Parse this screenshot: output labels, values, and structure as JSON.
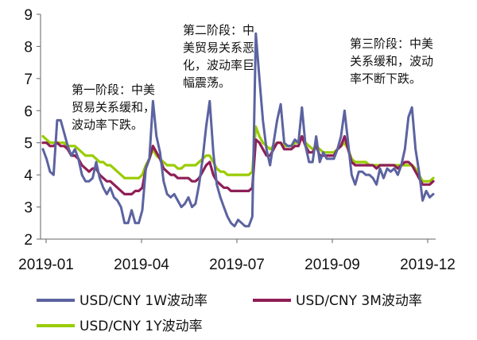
{
  "chart_data": {
    "type": "line",
    "title": "",
    "xlabel": "",
    "ylabel": "",
    "ylim": [
      2,
      9
    ],
    "yticks": [
      "2",
      "3",
      "4",
      "5",
      "6",
      "7",
      "8",
      "9"
    ],
    "xticks": [
      "2019-01",
      "2019-04",
      "2019-07",
      "2019-09",
      "2019-12"
    ],
    "grid": false,
    "legend_position": "bottom",
    "series": [
      {
        "name": "USD/CNY 1W波动率",
        "color": "#5b63a0",
        "values": [
          4.8,
          4.5,
          4.1,
          4.0,
          5.7,
          5.7,
          5.3,
          4.9,
          4.6,
          4.8,
          4.5,
          4.0,
          3.8,
          3.8,
          3.9,
          4.4,
          3.9,
          3.6,
          3.4,
          3.6,
          3.3,
          3.2,
          3.0,
          2.5,
          2.5,
          2.9,
          2.5,
          2.5,
          2.9,
          4.2,
          4.5,
          6.3,
          5.2,
          4.7,
          3.8,
          3.4,
          3.3,
          3.4,
          3.2,
          3.0,
          3.1,
          3.3,
          3.0,
          3.1,
          3.7,
          4.5,
          5.5,
          6.3,
          4.7,
          3.7,
          3.3,
          3.0,
          2.7,
          2.5,
          2.4,
          2.6,
          2.5,
          2.4,
          2.4,
          2.7,
          8.4,
          7.0,
          5.7,
          4.8,
          4.3,
          5.0,
          5.7,
          6.2,
          5.0,
          4.9,
          4.9,
          5.1,
          5.0,
          6.1,
          4.9,
          4.4,
          4.4,
          5.2,
          4.4,
          4.7,
          4.5,
          4.5,
          4.5,
          4.8,
          5.2,
          6.0,
          5.0,
          4.0,
          3.7,
          4.1,
          4.1,
          4.0,
          4.0,
          3.9,
          3.7,
          4.2,
          3.9,
          4.2,
          4.1,
          4.2,
          4.0,
          4.3,
          4.8,
          5.8,
          6.1,
          4.8,
          4.1,
          3.2,
          3.5,
          3.3,
          3.4
        ],
        "values_note": "Approximate readings across the 2019-01 to 2019-12 window."
      },
      {
        "name": "USD/CNY 3M波动率",
        "color": "#8e1f57",
        "values": [
          5.0,
          5.0,
          4.9,
          4.9,
          5.0,
          4.9,
          4.9,
          4.8,
          4.6,
          4.6,
          4.5,
          4.3,
          4.2,
          4.1,
          4.2,
          4.2,
          4.0,
          3.9,
          3.8,
          3.8,
          3.7,
          3.6,
          3.5,
          3.4,
          3.4,
          3.4,
          3.5,
          3.5,
          3.6,
          4.2,
          4.5,
          4.9,
          4.7,
          4.5,
          4.2,
          4.1,
          4.0,
          4.0,
          3.9,
          3.9,
          3.9,
          3.9,
          3.8,
          3.8,
          3.9,
          4.1,
          4.3,
          4.4,
          4.0,
          3.8,
          3.7,
          3.6,
          3.6,
          3.5,
          3.5,
          3.5,
          3.5,
          3.5,
          3.5,
          3.6,
          5.1,
          5.0,
          4.8,
          4.6,
          4.6,
          4.8,
          5.0,
          5.0,
          4.8,
          4.8,
          4.8,
          4.9,
          4.9,
          5.2,
          4.9,
          4.7,
          4.7,
          4.9,
          4.6,
          4.6,
          4.6,
          4.6,
          4.6,
          4.8,
          4.9,
          5.2,
          4.8,
          4.4,
          4.3,
          4.3,
          4.3,
          4.3,
          4.3,
          4.3,
          4.2,
          4.3,
          4.3,
          4.3,
          4.3,
          4.3,
          4.2,
          4.3,
          4.4,
          4.4,
          4.3,
          4.1,
          3.9,
          3.7,
          3.7,
          3.7,
          3.8
        ]
      },
      {
        "name": "USD/CNY 1Y波动率",
        "color": "#99cc00",
        "values": [
          5.2,
          5.1,
          5.0,
          5.0,
          5.0,
          5.0,
          5.0,
          4.9,
          4.9,
          4.9,
          4.8,
          4.7,
          4.6,
          4.6,
          4.6,
          4.5,
          4.4,
          4.4,
          4.3,
          4.3,
          4.2,
          4.1,
          4.0,
          3.9,
          3.9,
          3.9,
          3.9,
          3.9,
          4.0,
          4.3,
          4.5,
          4.8,
          4.6,
          4.5,
          4.4,
          4.3,
          4.3,
          4.3,
          4.2,
          4.2,
          4.3,
          4.3,
          4.3,
          4.3,
          4.4,
          4.5,
          4.6,
          4.6,
          4.4,
          4.2,
          4.1,
          4.1,
          4.0,
          4.0,
          4.0,
          4.0,
          4.0,
          4.0,
          4.0,
          4.1,
          5.5,
          5.2,
          5.0,
          4.9,
          4.8,
          4.9,
          5.0,
          5.0,
          4.9,
          4.9,
          4.9,
          5.0,
          5.0,
          5.2,
          5.0,
          4.9,
          4.8,
          4.9,
          4.8,
          4.7,
          4.7,
          4.7,
          4.7,
          4.8,
          4.9,
          5.0,
          4.8,
          4.5,
          4.4,
          4.4,
          4.4,
          4.4,
          4.3,
          4.3,
          4.3,
          4.3,
          4.3,
          4.3,
          4.3,
          4.3,
          4.3,
          4.3,
          4.3,
          4.3,
          4.3,
          4.2,
          4.0,
          3.8,
          3.8,
          3.8,
          3.9
        ]
      }
    ],
    "annotations": [
      {
        "lines": [
          "第一阶段：中美",
          "贸易关系缓和，",
          "波动率下跌。"
        ]
      },
      {
        "lines": [
          "第二阶段：中",
          "美贸易关系恶",
          "化，波动率巨",
          "幅震荡。"
        ]
      },
      {
        "lines": [
          "第三阶段：中美",
          "关系缓和，波动",
          "率不断下跌。"
        ]
      }
    ]
  }
}
